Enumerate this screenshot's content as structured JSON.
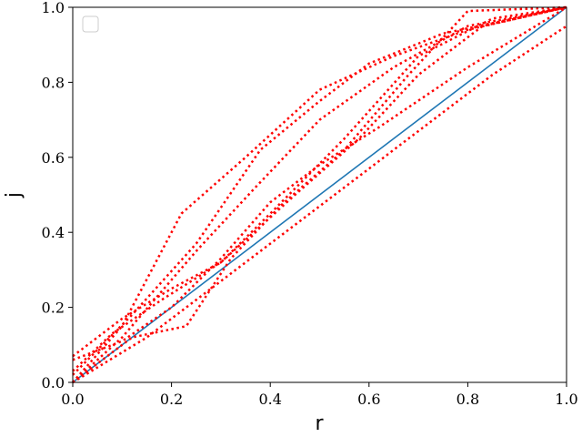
{
  "chart_data": {
    "type": "line",
    "title": "",
    "xlabel": "r",
    "ylabel": "j",
    "xlim": [
      0.0,
      1.0
    ],
    "ylim": [
      0.0,
      1.0
    ],
    "grid": false,
    "legend": {
      "placement": "top-left",
      "entries": []
    },
    "x_ticks": [
      "0.0",
      "0.2",
      "0.4",
      "0.6",
      "0.8",
      "1.0"
    ],
    "y_ticks": [
      "0.0",
      "0.2",
      "0.4",
      "0.6",
      "0.8",
      "1.0"
    ],
    "reference_line": {
      "style": "solid",
      "color": "#1f77b4",
      "points": [
        [
          0.0,
          0.0
        ],
        [
          1.0,
          1.0
        ]
      ]
    },
    "series_style": {
      "color": "#ff0000",
      "linestyle": "dotted"
    },
    "series": [
      {
        "points": [
          [
            0.0,
            0.0
          ],
          [
            0.1,
            0.15
          ],
          [
            0.22,
            0.45
          ],
          [
            0.35,
            0.6
          ],
          [
            0.5,
            0.78
          ],
          [
            0.65,
            0.87
          ],
          [
            0.8,
            0.94
          ],
          [
            1.0,
            1.0
          ]
        ]
      },
      {
        "points": [
          [
            0.0,
            0.02
          ],
          [
            0.12,
            0.18
          ],
          [
            0.25,
            0.37
          ],
          [
            0.38,
            0.62
          ],
          [
            0.5,
            0.75
          ],
          [
            0.6,
            0.85
          ],
          [
            0.75,
            0.93
          ],
          [
            1.0,
            1.0
          ]
        ]
      },
      {
        "points": [
          [
            0.0,
            0.0
          ],
          [
            0.1,
            0.12
          ],
          [
            0.25,
            0.35
          ],
          [
            0.37,
            0.52
          ],
          [
            0.5,
            0.7
          ],
          [
            0.65,
            0.84
          ],
          [
            0.8,
            0.95
          ],
          [
            1.0,
            1.0
          ]
        ]
      },
      {
        "points": [
          [
            0.0,
            0.07
          ],
          [
            0.1,
            0.17
          ],
          [
            0.2,
            0.25
          ],
          [
            0.3,
            0.32
          ],
          [
            0.4,
            0.45
          ],
          [
            0.55,
            0.65
          ],
          [
            0.7,
            0.87
          ],
          [
            0.85,
            0.97
          ],
          [
            1.0,
            1.0
          ]
        ]
      },
      {
        "points": [
          [
            0.0,
            0.03
          ],
          [
            0.08,
            0.13
          ],
          [
            0.18,
            0.22
          ],
          [
            0.3,
            0.32
          ],
          [
            0.45,
            0.5
          ],
          [
            0.58,
            0.65
          ],
          [
            0.7,
            0.82
          ],
          [
            0.83,
            0.95
          ],
          [
            1.0,
            1.0
          ]
        ]
      },
      {
        "points": [
          [
            0.0,
            0.0
          ],
          [
            0.12,
            0.12
          ],
          [
            0.23,
            0.15
          ],
          [
            0.32,
            0.33
          ],
          [
            0.42,
            0.47
          ],
          [
            0.55,
            0.62
          ],
          [
            0.68,
            0.82
          ],
          [
            0.8,
            0.99
          ],
          [
            1.0,
            1.0
          ]
        ]
      },
      {
        "points": [
          [
            0.0,
            0.06
          ],
          [
            0.1,
            0.11
          ],
          [
            0.2,
            0.2
          ],
          [
            0.3,
            0.33
          ],
          [
            0.4,
            0.48
          ],
          [
            0.5,
            0.58
          ],
          [
            0.62,
            0.68
          ],
          [
            0.8,
            0.84
          ],
          [
            1.0,
            1.0
          ]
        ]
      },
      {
        "points": [
          [
            0.0,
            0.0
          ],
          [
            0.15,
            0.12
          ],
          [
            0.28,
            0.25
          ],
          [
            0.4,
            0.37
          ],
          [
            0.55,
            0.52
          ],
          [
            0.7,
            0.67
          ],
          [
            0.85,
            0.82
          ],
          [
            1.0,
            0.95
          ]
        ]
      }
    ]
  }
}
